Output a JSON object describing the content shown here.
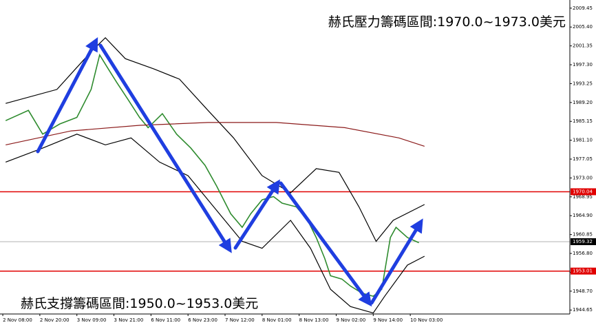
{
  "chart_data": {
    "type": "line",
    "annotations": [
      "赫氏壓力籌碼區間:1970.0~1973.0美元",
      "赫氏支撐籌碼區間:1950.0~1953.0美元"
    ],
    "xlim": [
      -0.5,
      199
    ],
    "xticks": [
      {
        "value": 0,
        "label": "2 Nov 08:00"
      },
      {
        "value": 13,
        "label": "2 Nov 20:00"
      },
      {
        "value": 26,
        "label": "3 Nov 09:00"
      },
      {
        "value": 39,
        "label": "3 Nov 21:00"
      },
      {
        "value": 52,
        "label": "6 Nov 11:00"
      },
      {
        "value": 65,
        "label": "6 Nov 23:00"
      },
      {
        "value": 78,
        "label": "7 Nov 12:00"
      },
      {
        "value": 91,
        "label": "8 Nov 01:00"
      },
      {
        "value": 104,
        "label": "8 Nov 13:00"
      },
      {
        "value": 117,
        "label": "9 Nov 02:00"
      },
      {
        "value": 130,
        "label": "9 Nov 14:00"
      },
      {
        "value": 143,
        "label": "10 Nov 03:00"
      }
    ],
    "ylim": [
      1943.8,
      2011.2
    ],
    "yticks": [
      2009.45,
      {
        "value": 2005.4,
        "label": "2005.40"
      },
      2001.35,
      {
        "value": 1997.3,
        "label": "1997.30"
      },
      1993.25,
      {
        "value": 1989.2,
        "label": "1989.20"
      },
      1985.15,
      {
        "value": 1981.1,
        "label": "1981.10"
      },
      1977.05,
      {
        "value": 1973,
        "label": "1973.00"
      },
      1968.95,
      {
        "value": 1964.9,
        "label": "1964.90"
      },
      1960.85,
      {
        "value": 1956.8,
        "label": "1956.80"
      },
      1952.75,
      {
        "value": 1948.7,
        "label": "1948.70"
      },
      1944.65
    ],
    "hlines": [
      {
        "value": 1970.04,
        "color": "#e00000"
      },
      {
        "value": 1959.32,
        "color": "#b0b0b0"
      },
      {
        "value": 1953.01,
        "color": "#e00000"
      }
    ],
    "series": [
      {
        "color": "#2e8b2e",
        "x": [
          1,
          9,
          14,
          20,
          26,
          31,
          34,
          37,
          40,
          44,
          48,
          51,
          56,
          61,
          66,
          71,
          75,
          80,
          84,
          87,
          91,
          95,
          98,
          103,
          107,
          110,
          113,
          115,
          119,
          122,
          126,
          130,
          133,
          136,
          138,
          142,
          146
        ],
        "values": [
          1985.3,
          1987.5,
          1982.4,
          1984.6,
          1986.0,
          1992.0,
          1999.4,
          1996.4,
          1993.5,
          1989.8,
          1986.0,
          1983.8,
          1986.8,
          1982.4,
          1979.4,
          1975.7,
          1971.3,
          1965.3,
          1962.4,
          1965.3,
          1968.3,
          1969.0,
          1967.6,
          1966.8,
          1963.9,
          1960.2,
          1955.7,
          1952.0,
          1951.3,
          1949.8,
          1948.3,
          1947.6,
          1949.1,
          1960.2,
          1962.4,
          1960.2,
          1959.1
        ]
      },
      {
        "color": "#000000",
        "x": [
          1,
          19,
          31,
          36,
          43,
          53,
          62,
          72,
          81,
          91,
          101,
          110,
          118,
          125,
          131,
          137,
          148
        ],
        "values": [
          1989.0,
          1992.0,
          2000.1,
          2003.1,
          1998.6,
          1996.4,
          1994.2,
          1987.5,
          1981.6,
          1973.5,
          1969.8,
          1975.0,
          1974.2,
          1966.8,
          1959.4,
          1963.9,
          1967.3
        ]
      },
      {
        "color": "#000000",
        "x": [
          1,
          14,
          26,
          36,
          45,
          55,
          65,
          74,
          84,
          91,
          101,
          108,
          115,
          122,
          130,
          134,
          142,
          148
        ],
        "values": [
          1976.4,
          1979.4,
          1982.4,
          1980.1,
          1981.6,
          1976.4,
          1973.5,
          1966.8,
          1959.4,
          1957.9,
          1963.9,
          1957.9,
          1949.1,
          1945.4,
          1944.0,
          1947.6,
          1954.3,
          1956.2
        ]
      },
      {
        "color": "#8b1a1a",
        "x": [
          1,
          24,
          48,
          72,
          96,
          120,
          139,
          148
        ],
        "values": [
          1980.1,
          1983.1,
          1984.3,
          1984.9,
          1984.9,
          1983.8,
          1981.6,
          1979.8
        ]
      }
    ]
  }
}
